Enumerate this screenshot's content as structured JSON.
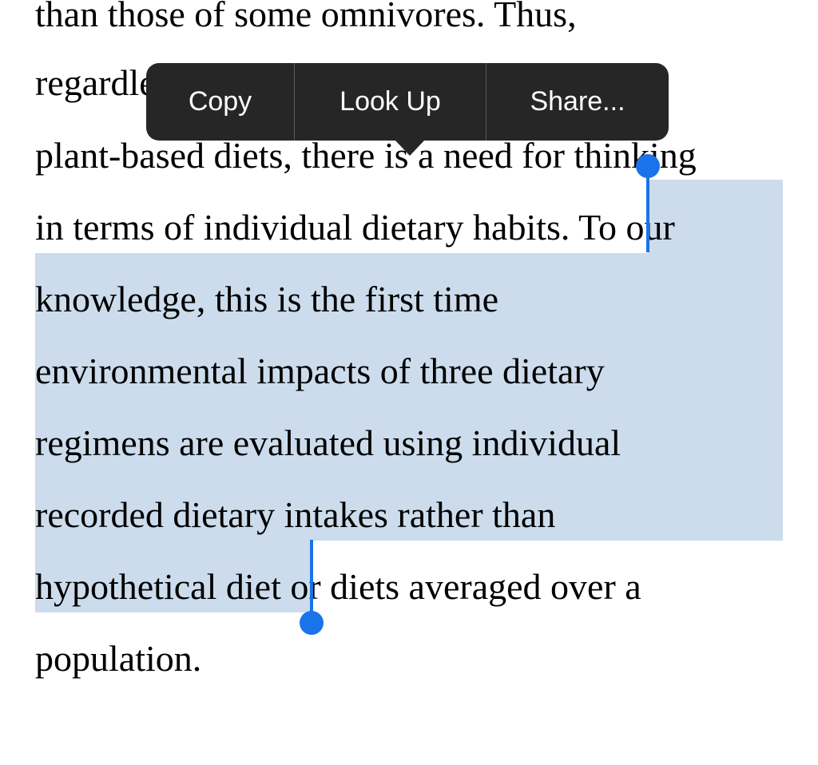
{
  "document": {
    "lines": [
      "than those of some omnivores. Thus,",
      "regardless of the environmental benefits of",
      "plant-based diets, there is a need for thinking",
      "in terms of individual dietary habits. ",
      "knowledge, this is the first time",
      "environmental impacts of three dietary",
      "regimens are evaluated using individual",
      "recorded dietary intakes rather than",
      "hypothetical diet",
      "population."
    ],
    "line4_selected": "To our",
    "line9_rest": " or diets averaged over a"
  },
  "menu": {
    "copy_label": "Copy",
    "lookup_label": "Look Up",
    "share_label": "Share..."
  },
  "colors": {
    "selection": "#ccdcec",
    "handle": "#1a73e8",
    "menu_background": "#262626",
    "menu_text": "#ffffff"
  }
}
